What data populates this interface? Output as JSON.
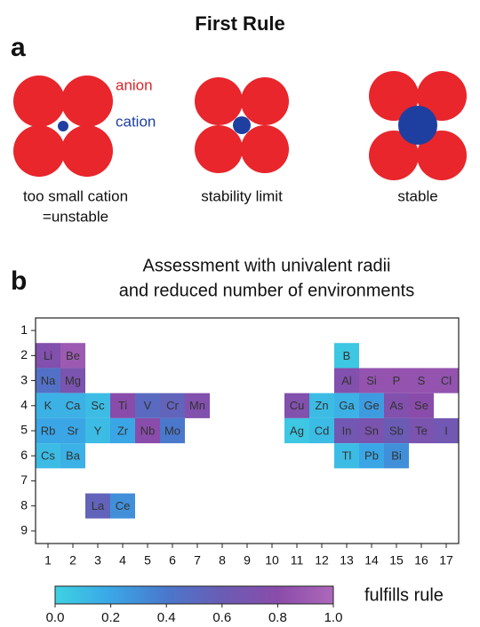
{
  "title": "First Rule",
  "panel_a": {
    "label": "a",
    "anion": "anion",
    "cation": "cation",
    "captions": [
      [
        "too small cation",
        "=unstable"
      ],
      [
        "stability limit"
      ],
      [
        "stable"
      ]
    ]
  },
  "chart_data": {
    "type": "heatmap",
    "panel_label": "b",
    "title_lines": [
      "Assessment with univalent radii",
      "and reduced number of environments"
    ],
    "xlim": [
      0.5,
      17.5
    ],
    "ylim": [
      0.5,
      9.5
    ],
    "xticks": [
      1,
      2,
      3,
      4,
      5,
      6,
      7,
      8,
      9,
      10,
      11,
      12,
      13,
      14,
      15,
      16,
      17
    ],
    "yticks": [
      1,
      2,
      3,
      4,
      5,
      6,
      7,
      8,
      9
    ],
    "colormap": [
      "#3ed2e2",
      "#3aa6e6",
      "#4a78cc",
      "#6a5cb4",
      "#8a4caa",
      "#ad68ba"
    ],
    "cells": [
      {
        "label": "Li",
        "x": 1,
        "y": 2,
        "value": 0.75
      },
      {
        "label": "Be",
        "x": 2,
        "y": 2,
        "value": 0.9
      },
      {
        "label": "B",
        "x": 13,
        "y": 2,
        "value": 0.05
      },
      {
        "label": "Na",
        "x": 1,
        "y": 3,
        "value": 0.45
      },
      {
        "label": "Mg",
        "x": 2,
        "y": 3,
        "value": 0.7
      },
      {
        "label": "Al",
        "x": 13,
        "y": 3,
        "value": 0.75
      },
      {
        "label": "Si",
        "x": 14,
        "y": 3,
        "value": 0.85
      },
      {
        "label": "P",
        "x": 15,
        "y": 3,
        "value": 0.85
      },
      {
        "label": "S",
        "x": 16,
        "y": 3,
        "value": 0.85
      },
      {
        "label": "Cl",
        "x": 17,
        "y": 3,
        "value": 0.85
      },
      {
        "label": "K",
        "x": 1,
        "y": 4,
        "value": 0.15
      },
      {
        "label": "Ca",
        "x": 2,
        "y": 4,
        "value": 0.15
      },
      {
        "label": "Sc",
        "x": 3,
        "y": 4,
        "value": 0.1
      },
      {
        "label": "Ti",
        "x": 4,
        "y": 4,
        "value": 0.8
      },
      {
        "label": "V",
        "x": 5,
        "y": 4,
        "value": 0.5
      },
      {
        "label": "Cr",
        "x": 6,
        "y": 4,
        "value": 0.55
      },
      {
        "label": "Mn",
        "x": 7,
        "y": 4,
        "value": 0.75
      },
      {
        "label": "Cu",
        "x": 11,
        "y": 4,
        "value": 0.75
      },
      {
        "label": "Zn",
        "x": 12,
        "y": 4,
        "value": 0.1
      },
      {
        "label": "Ga",
        "x": 13,
        "y": 4,
        "value": 0.15
      },
      {
        "label": "Ge",
        "x": 14,
        "y": 4,
        "value": 0.25
      },
      {
        "label": "As",
        "x": 15,
        "y": 4,
        "value": 0.75
      },
      {
        "label": "Se",
        "x": 16,
        "y": 4,
        "value": 0.8
      },
      {
        "label": "Rb",
        "x": 1,
        "y": 5,
        "value": 0.2
      },
      {
        "label": "Sr",
        "x": 2,
        "y": 5,
        "value": 0.2
      },
      {
        "label": "Y",
        "x": 3,
        "y": 5,
        "value": 0.1
      },
      {
        "label": "Zr",
        "x": 4,
        "y": 5,
        "value": 0.2
      },
      {
        "label": "Nb",
        "x": 5,
        "y": 5,
        "value": 0.8
      },
      {
        "label": "Mo",
        "x": 6,
        "y": 5,
        "value": 0.4
      },
      {
        "label": "Ag",
        "x": 11,
        "y": 5,
        "value": 0.05
      },
      {
        "label": "Cd",
        "x": 12,
        "y": 5,
        "value": 0.1
      },
      {
        "label": "In",
        "x": 13,
        "y": 5,
        "value": 0.65
      },
      {
        "label": "Sn",
        "x": 14,
        "y": 5,
        "value": 0.7
      },
      {
        "label": "Sb",
        "x": 15,
        "y": 5,
        "value": 0.6
      },
      {
        "label": "Te",
        "x": 16,
        "y": 5,
        "value": 0.7
      },
      {
        "label": "I",
        "x": 17,
        "y": 5,
        "value": 0.65
      },
      {
        "label": "Cs",
        "x": 1,
        "y": 6,
        "value": 0.1
      },
      {
        "label": "Ba",
        "x": 2,
        "y": 6,
        "value": 0.15
      },
      {
        "label": "Tl",
        "x": 13,
        "y": 6,
        "value": 0.1
      },
      {
        "label": "Pb",
        "x": 14,
        "y": 6,
        "value": 0.2
      },
      {
        "label": "Bi",
        "x": 15,
        "y": 6,
        "value": 0.3
      },
      {
        "label": "La",
        "x": 3,
        "y": 8,
        "value": 0.55
      },
      {
        "label": "Ce",
        "x": 4,
        "y": 8,
        "value": 0.3
      }
    ],
    "colorbar": {
      "label": "fulfills rule",
      "lim": [
        0,
        1
      ],
      "ticks": [
        {
          "value": 0,
          "label": "0.0"
        },
        {
          "value": 0.2,
          "label": "0.2"
        },
        {
          "value": 0.4,
          "label": "0.4"
        },
        {
          "value": 0.6,
          "label": "0.6"
        },
        {
          "value": 0.8,
          "label": "0.8"
        },
        {
          "value": 1,
          "label": "1.0"
        }
      ]
    }
  }
}
